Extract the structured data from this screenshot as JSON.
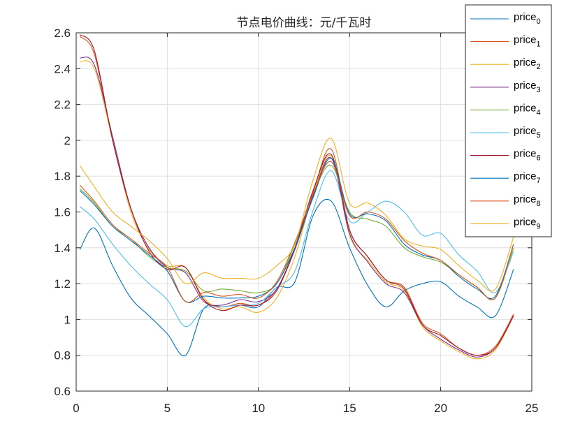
{
  "chart_data": {
    "type": "line",
    "title": "节点电价曲线：元/千瓦时",
    "xlabel": "",
    "ylabel": "",
    "xlim": [
      0,
      25
    ],
    "ylim": [
      0.6,
      2.6
    ],
    "xticks": [
      "0",
      "5",
      "10",
      "15",
      "20",
      "25"
    ],
    "yticks": [
      "0.6",
      "0.8",
      "1",
      "1.2",
      "1.4",
      "1.6",
      "1.8",
      "2",
      "2.2",
      "2.4",
      "2.6"
    ],
    "grid": true,
    "legend_position": "top-right",
    "x": [
      0.2,
      1,
      2,
      3,
      4,
      5,
      6,
      7,
      8,
      9,
      10,
      11,
      12,
      13,
      14,
      15,
      16,
      17,
      18,
      19,
      20,
      21,
      22,
      23,
      24
    ],
    "series": [
      {
        "name": "price",
        "subscript": "0",
        "color": "#0072BD",
        "values": [
          1.39,
          1.51,
          1.3,
          1.12,
          1.02,
          0.92,
          0.8,
          1.06,
          1.07,
          1.08,
          1.07,
          1.18,
          1.21,
          1.58,
          1.66,
          1.4,
          1.19,
          1.07,
          1.16,
          1.2,
          1.21,
          1.13,
          1.07,
          1.02,
          1.28
        ]
      },
      {
        "name": "price",
        "subscript": "1",
        "color": "#D95319",
        "values": [
          2.58,
          2.48,
          2.0,
          1.62,
          1.4,
          1.3,
          1.29,
          1.11,
          1.07,
          1.09,
          1.08,
          1.17,
          1.4,
          1.71,
          1.95,
          1.5,
          1.35,
          1.22,
          1.18,
          0.98,
          0.92,
          0.84,
          0.8,
          0.85,
          1.03
        ]
      },
      {
        "name": "price",
        "subscript": "2",
        "color": "#EDB120",
        "values": [
          2.44,
          2.4,
          2.0,
          1.6,
          1.39,
          1.3,
          1.29,
          1.12,
          1.06,
          1.07,
          1.04,
          1.12,
          1.35,
          1.7,
          1.91,
          1.47,
          1.33,
          1.21,
          1.16,
          0.96,
          0.88,
          0.82,
          0.78,
          0.83,
          1.02
        ]
      },
      {
        "name": "price",
        "subscript": "3",
        "color": "#7E2F8E",
        "values": [
          2.46,
          2.42,
          2.02,
          1.62,
          1.4,
          1.29,
          1.26,
          1.1,
          1.08,
          1.11,
          1.1,
          1.17,
          1.39,
          1.69,
          1.9,
          1.48,
          1.32,
          1.2,
          1.15,
          0.97,
          0.89,
          0.83,
          0.79,
          0.84,
          1.02
        ]
      },
      {
        "name": "price",
        "subscript": "4",
        "color": "#77AC30",
        "values": [
          1.73,
          1.65,
          1.52,
          1.45,
          1.35,
          1.29,
          1.27,
          1.16,
          1.17,
          1.16,
          1.15,
          1.2,
          1.42,
          1.7,
          1.86,
          1.6,
          1.56,
          1.52,
          1.4,
          1.35,
          1.32,
          1.25,
          1.18,
          1.12,
          1.4
        ]
      },
      {
        "name": "price",
        "subscript": "5",
        "color": "#4DBEEE",
        "values": [
          1.63,
          1.56,
          1.42,
          1.3,
          1.2,
          1.11,
          0.96,
          1.06,
          1.07,
          1.08,
          1.09,
          1.18,
          1.27,
          1.61,
          1.83,
          1.55,
          1.6,
          1.66,
          1.6,
          1.47,
          1.48,
          1.36,
          1.27,
          1.15,
          1.38
        ]
      },
      {
        "name": "price",
        "subscript": "6",
        "color": "#A2142F",
        "values": [
          2.59,
          2.5,
          2.0,
          1.62,
          1.38,
          1.28,
          1.29,
          1.11,
          1.05,
          1.08,
          1.08,
          1.16,
          1.4,
          1.72,
          1.92,
          1.5,
          1.35,
          1.22,
          1.17,
          0.97,
          0.91,
          0.84,
          0.8,
          0.84,
          1.02
        ]
      },
      {
        "name": "price",
        "subscript": "7",
        "color": "#0072BD",
        "values": [
          1.72,
          1.64,
          1.52,
          1.44,
          1.36,
          1.27,
          1.1,
          1.13,
          1.12,
          1.12,
          1.13,
          1.2,
          1.4,
          1.68,
          1.9,
          1.59,
          1.59,
          1.55,
          1.42,
          1.36,
          1.33,
          1.24,
          1.17,
          1.13,
          1.42
        ]
      },
      {
        "name": "price",
        "subscript": "8",
        "color": "#D95319",
        "values": [
          1.75,
          1.66,
          1.53,
          1.45,
          1.37,
          1.29,
          1.1,
          1.15,
          1.13,
          1.14,
          1.12,
          1.21,
          1.43,
          1.7,
          1.88,
          1.58,
          1.6,
          1.56,
          1.44,
          1.37,
          1.33,
          1.25,
          1.18,
          1.12,
          1.42
        ]
      },
      {
        "name": "price",
        "subscript": "9",
        "color": "#EDB120",
        "values": [
          1.86,
          1.74,
          1.6,
          1.52,
          1.44,
          1.34,
          1.2,
          1.26,
          1.23,
          1.23,
          1.23,
          1.3,
          1.42,
          1.78,
          2.01,
          1.65,
          1.65,
          1.58,
          1.45,
          1.41,
          1.39,
          1.3,
          1.22,
          1.17,
          1.46
        ]
      }
    ]
  }
}
